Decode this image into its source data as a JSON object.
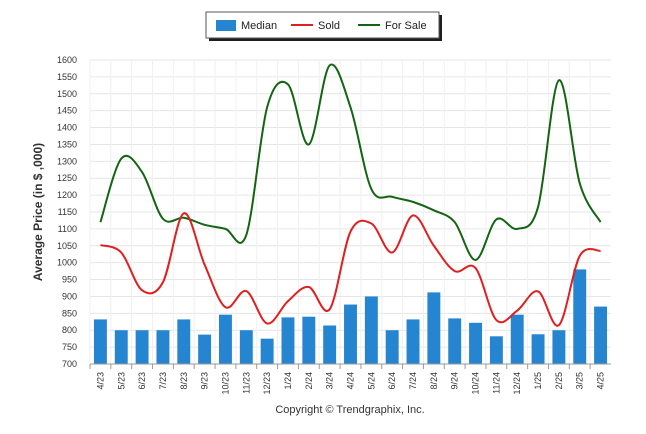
{
  "chart_data": {
    "type": "bar",
    "ylabel": "Average Price (in $ ,000)",
    "ylim": [
      700,
      1600
    ],
    "yticks": [
      700,
      750,
      800,
      850,
      900,
      950,
      1000,
      1050,
      1100,
      1150,
      1200,
      1250,
      1300,
      1350,
      1400,
      1450,
      1500,
      1550,
      1600
    ],
    "grid": true,
    "legend_position": "top-center",
    "categories": [
      "4/23",
      "5/23",
      "6/23",
      "7/23",
      "8/23",
      "9/23",
      "10/23",
      "11/23",
      "12/23",
      "1/24",
      "2/24",
      "3/24",
      "4/24",
      "5/24",
      "6/24",
      "7/24",
      "8/24",
      "9/24",
      "10/24",
      "11/24",
      "12/24",
      "1/25",
      "2/25",
      "3/25",
      "4/25"
    ],
    "series": [
      {
        "name": "Median",
        "type": "bar",
        "color": "#2585d0",
        "values": [
          832,
          800,
          800,
          800,
          832,
          787,
          846,
          800,
          775,
          838,
          840,
          814,
          876,
          900,
          800,
          832,
          912,
          835,
          822,
          782,
          846,
          788,
          800,
          980,
          870
        ]
      },
      {
        "name": "Sold",
        "type": "line",
        "color": "#e02020",
        "values": [
          1052,
          1030,
          918,
          942,
          1146,
          994,
          868,
          916,
          820,
          886,
          928,
          862,
          1092,
          1116,
          1030,
          1140,
          1050,
          975,
          984,
          830,
          858,
          915,
          815,
          1020,
          1035
        ]
      },
      {
        "name": "For Sale",
        "type": "line",
        "color": "#146414",
        "values": [
          1120,
          1308,
          1268,
          1130,
          1133,
          1112,
          1100,
          1082,
          1460,
          1528,
          1350,
          1584,
          1460,
          1218,
          1195,
          1180,
          1155,
          1120,
          1008,
          1128,
          1100,
          1165,
          1540,
          1235,
          1120
        ]
      }
    ]
  },
  "footer": {
    "copyright": "Copyright © Trendgraphix, Inc."
  }
}
